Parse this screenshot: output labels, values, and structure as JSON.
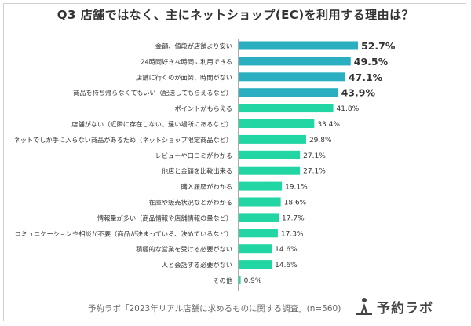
{
  "title": "Q3 店舗ではなく、主にネットショップ(EC)を利用する理由は？",
  "footer": "予約ラボ「2023年リアル店舗に求めるものに関する調査」(n=560)",
  "brand": {
    "name": "予約ラボ",
    "icon": "person-pointer-icon"
  },
  "colors": {
    "top": "#2aafc0",
    "rest": "#22d6a4",
    "text": "#333333",
    "axis": "#555555"
  },
  "chart_data": {
    "type": "bar",
    "orientation": "horizontal",
    "value_suffix": "%",
    "categories": [
      "金額、値段が店舗より安い",
      "24時間好きな時間に利用できる",
      "店舗に行くのが面倒、時間がない",
      "商品を持ち帰らなくてもいい（配送してもらえるなど）",
      "ポイントがもらえる",
      "店舗がない（近隣に存在しない、遠い場所にあるなど）",
      "ネットでしか手に入らない商品があるため（ネットショップ限定商品など）",
      "レビューや口コミがわかる",
      "他店と金額を比較出来る",
      "購入履歴がわかる",
      "在庫や販売状況などがわかる",
      "情報量が多い（商品情報や店舗情報の量など）",
      "コミュニケーションや相談が不要（商品が決まっている、決めているなど）",
      "積極的な営業を受ける必要がない",
      "人と会話する必要がない",
      "その他"
    ],
    "labels": [
      "52.7%",
      "49.5%",
      "47.1%",
      "43.9%",
      "41.8%",
      "33.4%",
      "29.8%",
      "27.1%",
      "27.1%",
      "19.1%",
      "18.6%",
      "17.7%",
      "17.3%",
      "14.6%",
      "14.6%",
      "0.9%"
    ],
    "values": [
      52.7,
      49.5,
      47.1,
      43.9,
      41.8,
      33.4,
      29.8,
      27.1,
      27.1,
      19.1,
      18.6,
      17.7,
      17.3,
      14.6,
      14.6,
      0.9
    ],
    "highlight_top": 4,
    "title": "Q3 店舗ではなく、主にネットショップ(EC)を利用する理由は？",
    "xlabel": "",
    "ylabel": "",
    "xlim": [
      0,
      55
    ],
    "grid": false,
    "legend": "none"
  }
}
